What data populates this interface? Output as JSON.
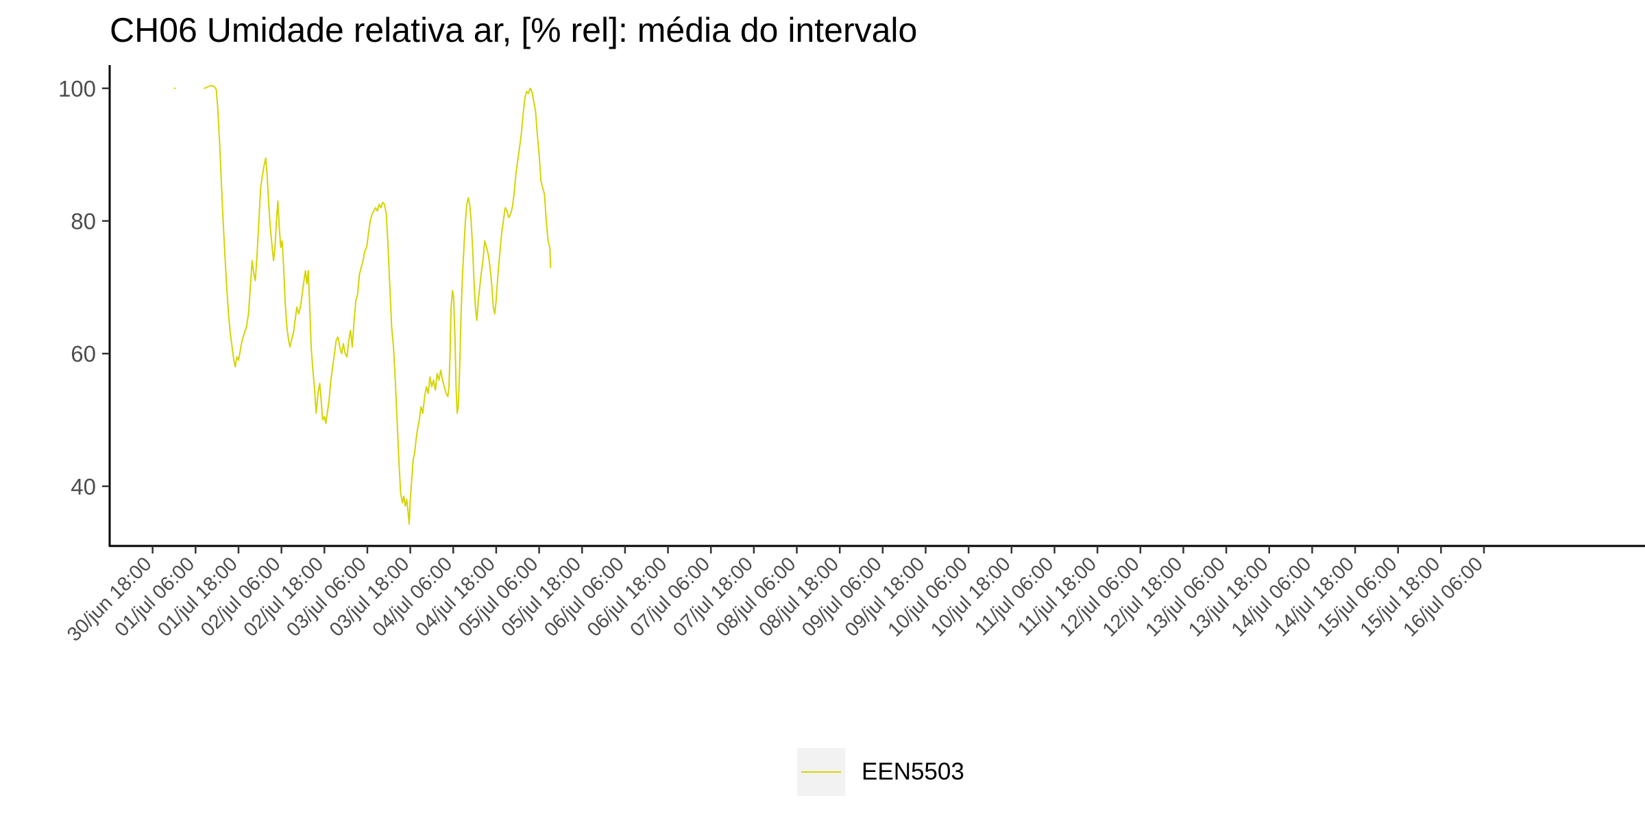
{
  "chart_data": {
    "type": "line",
    "title": "CH06 Umidade relativa ar, [% rel]: média do intervalo",
    "xlabel": "",
    "ylabel": "",
    "ylim": [
      31,
      103.5
    ],
    "y_ticks": [
      40,
      60,
      80,
      100
    ],
    "x_unit": "hours since 30/jun 18:00",
    "xlim": [
      -12,
      417
    ],
    "x_ticks": [
      {
        "x": 0,
        "label": "30/jun 18:00"
      },
      {
        "x": 12,
        "label": "01/jul 06:00"
      },
      {
        "x": 24,
        "label": "01/jul 18:00"
      },
      {
        "x": 36,
        "label": "02/jul 06:00"
      },
      {
        "x": 48,
        "label": "02/jul 18:00"
      },
      {
        "x": 60,
        "label": "03/jul 06:00"
      },
      {
        "x": 72,
        "label": "03/jul 18:00"
      },
      {
        "x": 84,
        "label": "04/jul 06:00"
      },
      {
        "x": 96,
        "label": "04/jul 18:00"
      },
      {
        "x": 108,
        "label": "05/jul 06:00"
      },
      {
        "x": 120,
        "label": "05/jul 18:00"
      },
      {
        "x": 132,
        "label": "06/jul 06:00"
      },
      {
        "x": 144,
        "label": "06/jul 18:00"
      },
      {
        "x": 156,
        "label": "07/jul 06:00"
      },
      {
        "x": 168,
        "label": "07/jul 18:00"
      },
      {
        "x": 180,
        "label": "08/jul 06:00"
      },
      {
        "x": 192,
        "label": "08/jul 18:00"
      },
      {
        "x": 204,
        "label": "09/jul 06:00"
      },
      {
        "x": 216,
        "label": "09/jul 18:00"
      },
      {
        "x": 228,
        "label": "10/jul 06:00"
      },
      {
        "x": 240,
        "label": "10/jul 18:00"
      },
      {
        "x": 252,
        "label": "11/jul 06:00"
      },
      {
        "x": 264,
        "label": "11/jul 18:00"
      },
      {
        "x": 276,
        "label": "12/jul 06:00"
      },
      {
        "x": 288,
        "label": "12/jul 18:00"
      },
      {
        "x": 300,
        "label": "13/jul 06:00"
      },
      {
        "x": 312,
        "label": "13/jul 18:00"
      },
      {
        "x": 324,
        "label": "14/jul 06:00"
      },
      {
        "x": 336,
        "label": "14/jul 18:00"
      },
      {
        "x": 348,
        "label": "15/jul 06:00"
      },
      {
        "x": 360,
        "label": "15/jul 18:00"
      },
      {
        "x": 372,
        "label": "16/jul 06:00"
      }
    ],
    "grid": false,
    "legend_position": "bottom",
    "series": [
      {
        "name": "EEN5503",
        "color": "#d4d400",
        "segments": [
          [
            [
              6.1,
              100.0
            ],
            [
              6.3,
              100.0
            ]
          ],
          [
            [
              14.5,
              100.0
            ],
            [
              15.3,
              100.2
            ],
            [
              16.3,
              100.4
            ],
            [
              17.2,
              100.3
            ],
            [
              17.8,
              99.8
            ],
            [
              18.2,
              97.0
            ],
            [
              18.7,
              92.0
            ],
            [
              19.2,
              86.0
            ],
            [
              19.7,
              80.0
            ],
            [
              20.2,
              75.0
            ],
            [
              20.7,
              70.0
            ],
            [
              21.2,
              66.0
            ],
            [
              21.7,
              63.0
            ],
            [
              22.2,
              61.0
            ],
            [
              22.7,
              59.0
            ],
            [
              23.1,
              58.0
            ],
            [
              23.5,
              59.5
            ],
            [
              24.0,
              59.0
            ],
            [
              24.5,
              60.5
            ],
            [
              25.0,
              62.0
            ],
            [
              25.6,
              63.0
            ],
            [
              26.2,
              64.0
            ],
            [
              26.8,
              66.0
            ],
            [
              27.3,
              70.0
            ],
            [
              27.8,
              74.0
            ],
            [
              28.3,
              72.0
            ],
            [
              28.7,
              71.0
            ],
            [
              29.2,
              75.0
            ],
            [
              29.7,
              80.0
            ],
            [
              30.2,
              85.0
            ],
            [
              30.7,
              87.0
            ],
            [
              31.2,
              88.5
            ],
            [
              31.6,
              89.5
            ],
            [
              32.0,
              87.0
            ],
            [
              32.4,
              83.0
            ],
            [
              32.9,
              79.0
            ],
            [
              33.4,
              76.0
            ],
            [
              33.8,
              74.0
            ],
            [
              34.2,
              76.0
            ],
            [
              34.6,
              80.0
            ],
            [
              35.0,
              83.0
            ],
            [
              35.4,
              79.0
            ],
            [
              35.8,
              76.0
            ],
            [
              36.2,
              77.0
            ],
            [
              36.6,
              73.0
            ],
            [
              37.0,
              68.0
            ],
            [
              37.5,
              64.0
            ],
            [
              38.0,
              62.0
            ],
            [
              38.4,
              61.0
            ],
            [
              38.8,
              62.0
            ],
            [
              39.3,
              63.0
            ],
            [
              39.8,
              65.0
            ],
            [
              40.3,
              67.0
            ],
            [
              40.8,
              66.0
            ],
            [
              41.3,
              67.0
            ],
            [
              41.8,
              69.0
            ],
            [
              42.3,
              71.0
            ],
            [
              42.7,
              72.5
            ],
            [
              43.1,
              70.5
            ],
            [
              43.5,
              72.5
            ],
            [
              43.9,
              67.0
            ],
            [
              44.3,
              61.0
            ],
            [
              44.7,
              58.0
            ],
            [
              45.2,
              55.0
            ],
            [
              45.7,
              51.0
            ],
            [
              46.2,
              54.0
            ],
            [
              46.7,
              55.5
            ],
            [
              47.1,
              53.0
            ],
            [
              47.5,
              50.0
            ],
            [
              48.0,
              50.5
            ],
            [
              48.4,
              49.5
            ],
            [
              48.8,
              51.0
            ],
            [
              49.3,
              53.0
            ],
            [
              49.8,
              56.0
            ],
            [
              50.3,
              58.0
            ],
            [
              50.8,
              60.0
            ],
            [
              51.3,
              62.0
            ],
            [
              51.8,
              62.5
            ],
            [
              52.3,
              61.0
            ],
            [
              52.8,
              60.0
            ],
            [
              53.3,
              61.5
            ],
            [
              53.8,
              60.0
            ],
            [
              54.3,
              59.5
            ],
            [
              54.8,
              62.0
            ],
            [
              55.3,
              63.5
            ],
            [
              55.8,
              61.0
            ],
            [
              56.3,
              65.0
            ],
            [
              56.8,
              68.0
            ],
            [
              57.3,
              69.0
            ],
            [
              57.8,
              72.0
            ],
            [
              58.3,
              73.0
            ],
            [
              58.8,
              74.0
            ],
            [
              59.3,
              75.5
            ],
            [
              59.8,
              76.0
            ],
            [
              60.3,
              78.0
            ],
            [
              60.8,
              80.0
            ],
            [
              61.3,
              81.0
            ],
            [
              61.8,
              81.5
            ],
            [
              62.3,
              82.0
            ],
            [
              62.8,
              81.5
            ],
            [
              63.3,
              82.5
            ],
            [
              63.8,
              82.0
            ],
            [
              64.3,
              82.8
            ],
            [
              64.8,
              82.5
            ],
            [
              65.3,
              81.0
            ],
            [
              65.8,
              76.0
            ],
            [
              66.3,
              70.0
            ],
            [
              66.8,
              64.0
            ],
            [
              67.3,
              61.0
            ],
            [
              67.8,
              56.0
            ],
            [
              68.3,
              50.0
            ],
            [
              68.8,
              44.0
            ],
            [
              69.3,
              39.0
            ],
            [
              69.8,
              37.5
            ],
            [
              70.2,
              38.5
            ],
            [
              70.6,
              37.0
            ],
            [
              71.0,
              38.0
            ],
            [
              71.4,
              36.0
            ],
            [
              71.7,
              34.3
            ],
            [
              72.0,
              38.0
            ],
            [
              72.4,
              41.0
            ],
            [
              72.8,
              44.0
            ],
            [
              73.2,
              45.0
            ],
            [
              73.6,
              47.0
            ],
            [
              74.0,
              48.5
            ],
            [
              74.5,
              50.0
            ],
            [
              75.0,
              52.0
            ],
            [
              75.5,
              51.0
            ],
            [
              76.0,
              53.5
            ],
            [
              76.5,
              55.0
            ],
            [
              77.0,
              54.0
            ],
            [
              77.5,
              56.5
            ],
            [
              78.0,
              55.0
            ],
            [
              78.5,
              56.0
            ],
            [
              79.0,
              54.5
            ],
            [
              79.5,
              57.0
            ],
            [
              80.0,
              56.0
            ],
            [
              80.5,
              57.5
            ],
            [
              81.0,
              56.0
            ],
            [
              81.5,
              55.0
            ],
            [
              82.0,
              54.0
            ],
            [
              82.5,
              53.5
            ],
            [
              82.8,
              55.0
            ],
            [
              83.1,
              60.0
            ],
            [
              83.4,
              67.0
            ],
            [
              83.8,
              69.5
            ],
            [
              84.1,
              68.5
            ],
            [
              84.5,
              62.0
            ],
            [
              84.8,
              55.0
            ],
            [
              85.1,
              51.0
            ],
            [
              85.4,
              52.0
            ],
            [
              85.8,
              58.0
            ],
            [
              86.2,
              66.0
            ],
            [
              86.6,
              72.0
            ],
            [
              87.0,
              76.0
            ],
            [
              87.4,
              80.0
            ],
            [
              87.8,
              82.5
            ],
            [
              88.2,
              83.5
            ],
            [
              88.6,
              82.5
            ],
            [
              89.0,
              80.0
            ],
            [
              89.4,
              76.0
            ],
            [
              89.8,
              71.0
            ],
            [
              90.2,
              67.0
            ],
            [
              90.6,
              65.0
            ],
            [
              91.0,
              68.0
            ],
            [
              91.4,
              70.0
            ],
            [
              91.8,
              72.0
            ],
            [
              92.3,
              74.0
            ],
            [
              92.8,
              77.0
            ],
            [
              93.3,
              76.0
            ],
            [
              93.8,
              75.0
            ],
            [
              94.3,
              73.0
            ],
            [
              94.8,
              70.0
            ],
            [
              95.2,
              67.0
            ],
            [
              95.6,
              66.0
            ],
            [
              96.0,
              68.0
            ],
            [
              96.5,
              72.0
            ],
            [
              97.0,
              75.0
            ],
            [
              97.5,
              78.0
            ],
            [
              98.0,
              80.0
            ],
            [
              98.5,
              82.0
            ],
            [
              99.0,
              81.5
            ],
            [
              99.5,
              80.5
            ],
            [
              100.0,
              81.0
            ],
            [
              100.5,
              82.0
            ],
            [
              101.0,
              84.0
            ],
            [
              101.5,
              87.0
            ],
            [
              102.0,
              89.0
            ],
            [
              102.5,
              91.0
            ],
            [
              103.0,
              93.0
            ],
            [
              103.5,
              96.0
            ],
            [
              104.0,
              98.5
            ],
            [
              104.5,
              99.5
            ],
            [
              105.0,
              99.2
            ],
            [
              105.5,
              100.0
            ],
            [
              106.0,
              99.5
            ],
            [
              106.5,
              98.0
            ],
            [
              107.0,
              96.5
            ],
            [
              107.5,
              93.0
            ],
            [
              108.0,
              90.0
            ],
            [
              108.5,
              86.0
            ],
            [
              109.0,
              85.0
            ],
            [
              109.5,
              84.0
            ],
            [
              110.0,
              80.0
            ],
            [
              110.5,
              77.0
            ],
            [
              111.0,
              76.0
            ],
            [
              111.2,
              73.0
            ]
          ]
        ]
      }
    ]
  },
  "legend": {
    "label": "EEN5503"
  }
}
